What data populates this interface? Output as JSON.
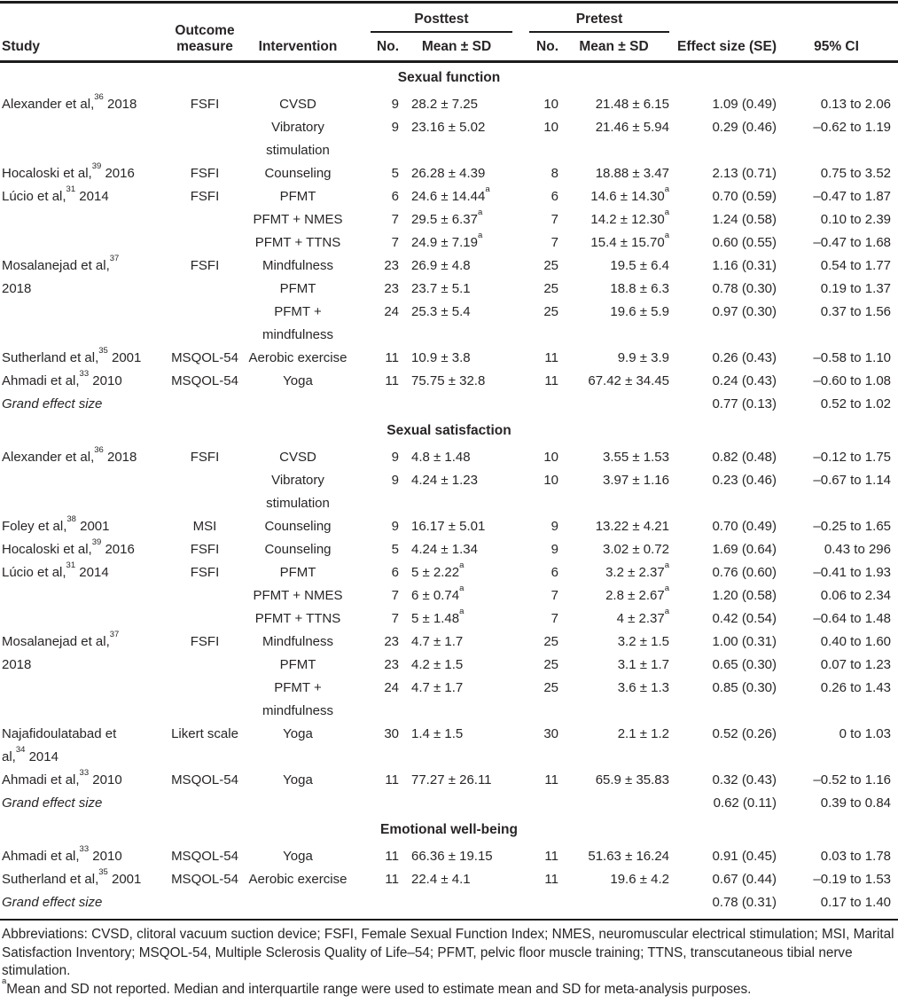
{
  "colors": {
    "text": "#292526",
    "rule": "#1c1c1c",
    "background": "#ffffff"
  },
  "table": {
    "header": {
      "study": "Study",
      "outcome_line1": "Outcome",
      "outcome_line2": "measure",
      "intervention": "Intervention",
      "posttest": "Posttest",
      "pretest": "Pretest",
      "no": "No.",
      "mean_sd": "Mean ± SD",
      "effect": "Effect size (SE)",
      "ci": "95% CI"
    },
    "sections": [
      {
        "title": "Sexual function",
        "groups": [
          {
            "study": [
              "Alexander et al,",
              {
                "sup": "36"
              },
              " 2018"
            ],
            "outcome": "FSFI",
            "rows": [
              {
                "intervention": "CVSD",
                "no_post": "9",
                "mean_post": "28.2 ± 7.25",
                "post_a": "",
                "no_pre": "10",
                "mean_pre": "21.48 ± 6.15",
                "pre_a": "",
                "effect": "1.09 (0.49)",
                "ci": "0.13 to 2.06"
              },
              {
                "intervention": "Vibratory\nstimulation",
                "no_post": "9",
                "mean_post": "23.16 ± 5.02",
                "post_a": "",
                "no_pre": "10",
                "mean_pre": "21.46 ± 5.94",
                "pre_a": "",
                "effect": "0.29 (0.46)",
                "ci": "–0.62 to 1.19"
              }
            ]
          },
          {
            "study": [
              "Hocaloski et al,",
              {
                "sup": "39"
              },
              " 2016"
            ],
            "outcome": "FSFI",
            "rows": [
              {
                "intervention": "Counseling",
                "no_post": "5",
                "mean_post": "26.28 ± 4.39",
                "post_a": "",
                "no_pre": "8",
                "mean_pre": "18.88 ± 3.47",
                "pre_a": "",
                "effect": "2.13 (0.71)",
                "ci": "0.75 to 3.52"
              }
            ]
          },
          {
            "study": [
              "Lúcio et al,",
              {
                "sup": "31"
              },
              " 2014"
            ],
            "outcome": "FSFI",
            "rows": [
              {
                "intervention": "PFMT",
                "no_post": "6",
                "mean_post": "24.6 ± 14.44",
                "post_a": "a",
                "no_pre": "6",
                "mean_pre": "14.6 ± 14.30",
                "pre_a": "a",
                "effect": "0.70 (0.59)",
                "ci": "–0.47 to 1.87"
              },
              {
                "intervention": "PFMT + NMES",
                "no_post": "7",
                "mean_post": "29.5 ± 6.37",
                "post_a": "a",
                "no_pre": "7",
                "mean_pre": "14.2 ± 12.30",
                "pre_a": "a",
                "effect": "1.24 (0.58)",
                "ci": "0.10 to 2.39"
              },
              {
                "intervention": "PFMT + TTNS",
                "no_post": "7",
                "mean_post": "24.9 ± 7.19",
                "post_a": "a",
                "no_pre": "7",
                "mean_pre": "15.4 ± 15.70",
                "pre_a": "a",
                "effect": "0.60 (0.55)",
                "ci": "–0.47 to 1.68"
              }
            ]
          },
          {
            "study": [
              "Mosalanejad et al,",
              {
                "sup": "37"
              },
              {
                "br": true
              },
              "2018"
            ],
            "outcome": "FSFI",
            "rows": [
              {
                "intervention": "Mindfulness",
                "no_post": "23",
                "mean_post": "26.9 ± 4.8",
                "post_a": "",
                "no_pre": "25",
                "mean_pre": "19.5 ± 6.4",
                "pre_a": "",
                "effect": "1.16 (0.31)",
                "ci": "0.54 to 1.77"
              },
              {
                "intervention": "PFMT",
                "no_post": "23",
                "mean_post": "23.7 ± 5.1",
                "post_a": "",
                "no_pre": "25",
                "mean_pre": "18.8 ± 6.3",
                "pre_a": "",
                "effect": "0.78 (0.30)",
                "ci": "0.19 to 1.37"
              },
              {
                "intervention": "PFMT +\nmindfulness",
                "no_post": "24",
                "mean_post": "25.3 ± 5.4",
                "post_a": "",
                "no_pre": "25",
                "mean_pre": "19.6 ± 5.9",
                "pre_a": "",
                "effect": "0.97 (0.30)",
                "ci": "0.37 to 1.56"
              }
            ]
          },
          {
            "study": [
              "Sutherland et al,",
              {
                "sup": "35"
              },
              " 2001"
            ],
            "outcome": "MSQOL-54",
            "rows": [
              {
                "intervention": "Aerobic exercise",
                "no_post": "11",
                "mean_post": "10.9 ± 3.8",
                "post_a": "",
                "no_pre": "11",
                "mean_pre": "9.9 ± 3.9",
                "pre_a": "",
                "effect": "0.26 (0.43)",
                "ci": "–0.58 to 1.10"
              }
            ]
          },
          {
            "study": [
              "Ahmadi et al,",
              {
                "sup": "33"
              },
              " 2010"
            ],
            "outcome": "MSQOL-54",
            "rows": [
              {
                "intervention": "Yoga",
                "no_post": "11",
                "mean_post": "75.75 ± 32.8",
                "post_a": "",
                "no_pre": "11",
                "mean_pre": "67.42 ± 34.45",
                "pre_a": "",
                "effect": "0.24 (0.43)",
                "ci": "–0.60 to 1.08"
              }
            ]
          }
        ],
        "grand": {
          "label": "Grand effect size",
          "effect": "0.77 (0.13)",
          "ci": "0.52 to 1.02"
        }
      },
      {
        "title": "Sexual satisfaction",
        "groups": [
          {
            "study": [
              "Alexander et al,",
              {
                "sup": "36"
              },
              " 2018"
            ],
            "outcome": "FSFI",
            "rows": [
              {
                "intervention": "CVSD",
                "no_post": "9",
                "mean_post": "4.8 ± 1.48",
                "post_a": "",
                "no_pre": "10",
                "mean_pre": "3.55 ± 1.53",
                "pre_a": "",
                "effect": "0.82 (0.48)",
                "ci": "–0.12 to 1.75"
              },
              {
                "intervention": "Vibratory\nstimulation",
                "no_post": "9",
                "mean_post": "4.24 ± 1.23",
                "post_a": "",
                "no_pre": "10",
                "mean_pre": "3.97 ± 1.16",
                "pre_a": "",
                "effect": "0.23 (0.46)",
                "ci": "–0.67 to 1.14"
              }
            ]
          },
          {
            "study": [
              "Foley et al,",
              {
                "sup": "38"
              },
              " 2001"
            ],
            "outcome": "MSI",
            "rows": [
              {
                "intervention": "Counseling",
                "no_post": "9",
                "mean_post": "16.17 ± 5.01",
                "post_a": "",
                "no_pre": "9",
                "mean_pre": "13.22 ± 4.21",
                "pre_a": "",
                "effect": "0.70 (0.49)",
                "ci": "–0.25 to 1.65"
              }
            ]
          },
          {
            "study": [
              "Hocaloski et al,",
              {
                "sup": "39"
              },
              " 2016"
            ],
            "outcome": "FSFI",
            "rows": [
              {
                "intervention": "Counseling",
                "no_post": "5",
                "mean_post": "4.24 ± 1.34",
                "post_a": "",
                "no_pre": "9",
                "mean_pre": "3.02 ± 0.72",
                "pre_a": "",
                "effect": "1.69 (0.64)",
                "ci": "0.43 to 296"
              }
            ]
          },
          {
            "study": [
              "Lúcio et al,",
              {
                "sup": "31"
              },
              " 2014"
            ],
            "outcome": "FSFI",
            "rows": [
              {
                "intervention": "PFMT",
                "no_post": "6",
                "mean_post": "5 ± 2.22",
                "post_a": "a",
                "no_pre": "6",
                "mean_pre": "3.2 ± 2.37",
                "pre_a": "a",
                "effect": "0.76 (0.60)",
                "ci": "–0.41 to 1.93"
              },
              {
                "intervention": "PFMT + NMES",
                "no_post": "7",
                "mean_post": "6 ± 0.74",
                "post_a": "a",
                "no_pre": "7",
                "mean_pre": "2.8 ± 2.67",
                "pre_a": "a",
                "effect": "1.20 (0.58)",
                "ci": "0.06 to 2.34"
              },
              {
                "intervention": "PFMT + TTNS",
                "no_post": "7",
                "mean_post": "5 ± 1.48",
                "post_a": "a",
                "no_pre": "7",
                "mean_pre": "4 ± 2.37",
                "pre_a": "a",
                "effect": "0.42 (0.54)",
                "ci": "–0.64 to 1.48"
              }
            ]
          },
          {
            "study": [
              "Mosalanejad et al,",
              {
                "sup": "37"
              },
              {
                "br": true
              },
              "2018"
            ],
            "outcome": "FSFI",
            "rows": [
              {
                "intervention": "Mindfulness",
                "no_post": "23",
                "mean_post": "4.7 ± 1.7",
                "post_a": "",
                "no_pre": "25",
                "mean_pre": "3.2 ± 1.5",
                "pre_a": "",
                "effect": "1.00 (0.31)",
                "ci": "0.40 to 1.60"
              },
              {
                "intervention": "PFMT",
                "no_post": "23",
                "mean_post": "4.2 ± 1.5",
                "post_a": "",
                "no_pre": "25",
                "mean_pre": "3.1 ± 1.7",
                "pre_a": "",
                "effect": "0.65 (0.30)",
                "ci": "0.07 to 1.23"
              },
              {
                "intervention": "PFMT +\nmindfulness",
                "no_post": "24",
                "mean_post": "4.7 ± 1.7",
                "post_a": "",
                "no_pre": "25",
                "mean_pre": "3.6 ± 1.3",
                "pre_a": "",
                "effect": "0.85 (0.30)",
                "ci": "0.26 to 1.43"
              }
            ]
          },
          {
            "study": [
              "Najafidoulatabad et",
              {
                "br": true
              },
              "al,",
              {
                "sup": "34"
              },
              " 2014"
            ],
            "outcome": "Likert scale",
            "rows": [
              {
                "intervention": "Yoga",
                "no_post": "30",
                "mean_post": "1.4 ± 1.5",
                "post_a": "",
                "no_pre": "30",
                "mean_pre": "2.1 ± 1.2",
                "pre_a": "",
                "effect": "0.52 (0.26)",
                "ci": "0 to 1.03"
              }
            ]
          },
          {
            "study": [
              "Ahmadi et al,",
              {
                "sup": "33"
              },
              " 2010"
            ],
            "outcome": "MSQOL-54",
            "rows": [
              {
                "intervention": "Yoga",
                "no_post": "11",
                "mean_post": "77.27 ± 26.11",
                "post_a": "",
                "no_pre": "11",
                "mean_pre": "65.9 ± 35.83",
                "pre_a": "",
                "effect": "0.32 (0.43)",
                "ci": "–0.52 to 1.16"
              }
            ]
          }
        ],
        "grand": {
          "label": "Grand effect size",
          "effect": "0.62 (0.11)",
          "ci": "0.39 to 0.84"
        }
      },
      {
        "title": "Emotional well-being",
        "groups": [
          {
            "study": [
              "Ahmadi et al,",
              {
                "sup": "33"
              },
              " 2010"
            ],
            "outcome": "MSQOL-54",
            "rows": [
              {
                "intervention": "Yoga",
                "no_post": "11",
                "mean_post": "66.36 ± 19.15",
                "post_a": "",
                "no_pre": "11",
                "mean_pre": "51.63 ± 16.24",
                "pre_a": "",
                "effect": "0.91 (0.45)",
                "ci": "0.03 to 1.78"
              }
            ]
          },
          {
            "study": [
              "Sutherland et al,",
              {
                "sup": "35"
              },
              " 2001"
            ],
            "outcome": "MSQOL-54",
            "rows": [
              {
                "intervention": "Aerobic exercise",
                "no_post": "11",
                "mean_post": "22.4 ± 4.1",
                "post_a": "",
                "no_pre": "11",
                "mean_pre": "19.6 ± 4.2",
                "pre_a": "",
                "effect": "0.67 (0.44)",
                "ci": "–0.19 to 1.53"
              }
            ]
          }
        ],
        "grand": {
          "label": "Grand effect size",
          "effect": "0.78 (0.31)",
          "ci": "0.17 to 1.40"
        }
      }
    ],
    "footnotes": {
      "abbreviations": "Abbreviations: CVSD, clitoral vacuum suction device; FSFI, Female Sexual Function Index; NMES, neuromuscular electrical stimulation; MSI, Marital Satisfaction Inventory; MSQOL-54, Multiple Sclerosis Quality of Life–54; PFMT, pelvic floor muscle training; TTNS, transcutaneous tibial nerve stimulation.",
      "note_sup": "a",
      "note": "Mean and SD not reported. Median and interquartile range were used to estimate mean and SD for meta-analysis purposes."
    }
  }
}
